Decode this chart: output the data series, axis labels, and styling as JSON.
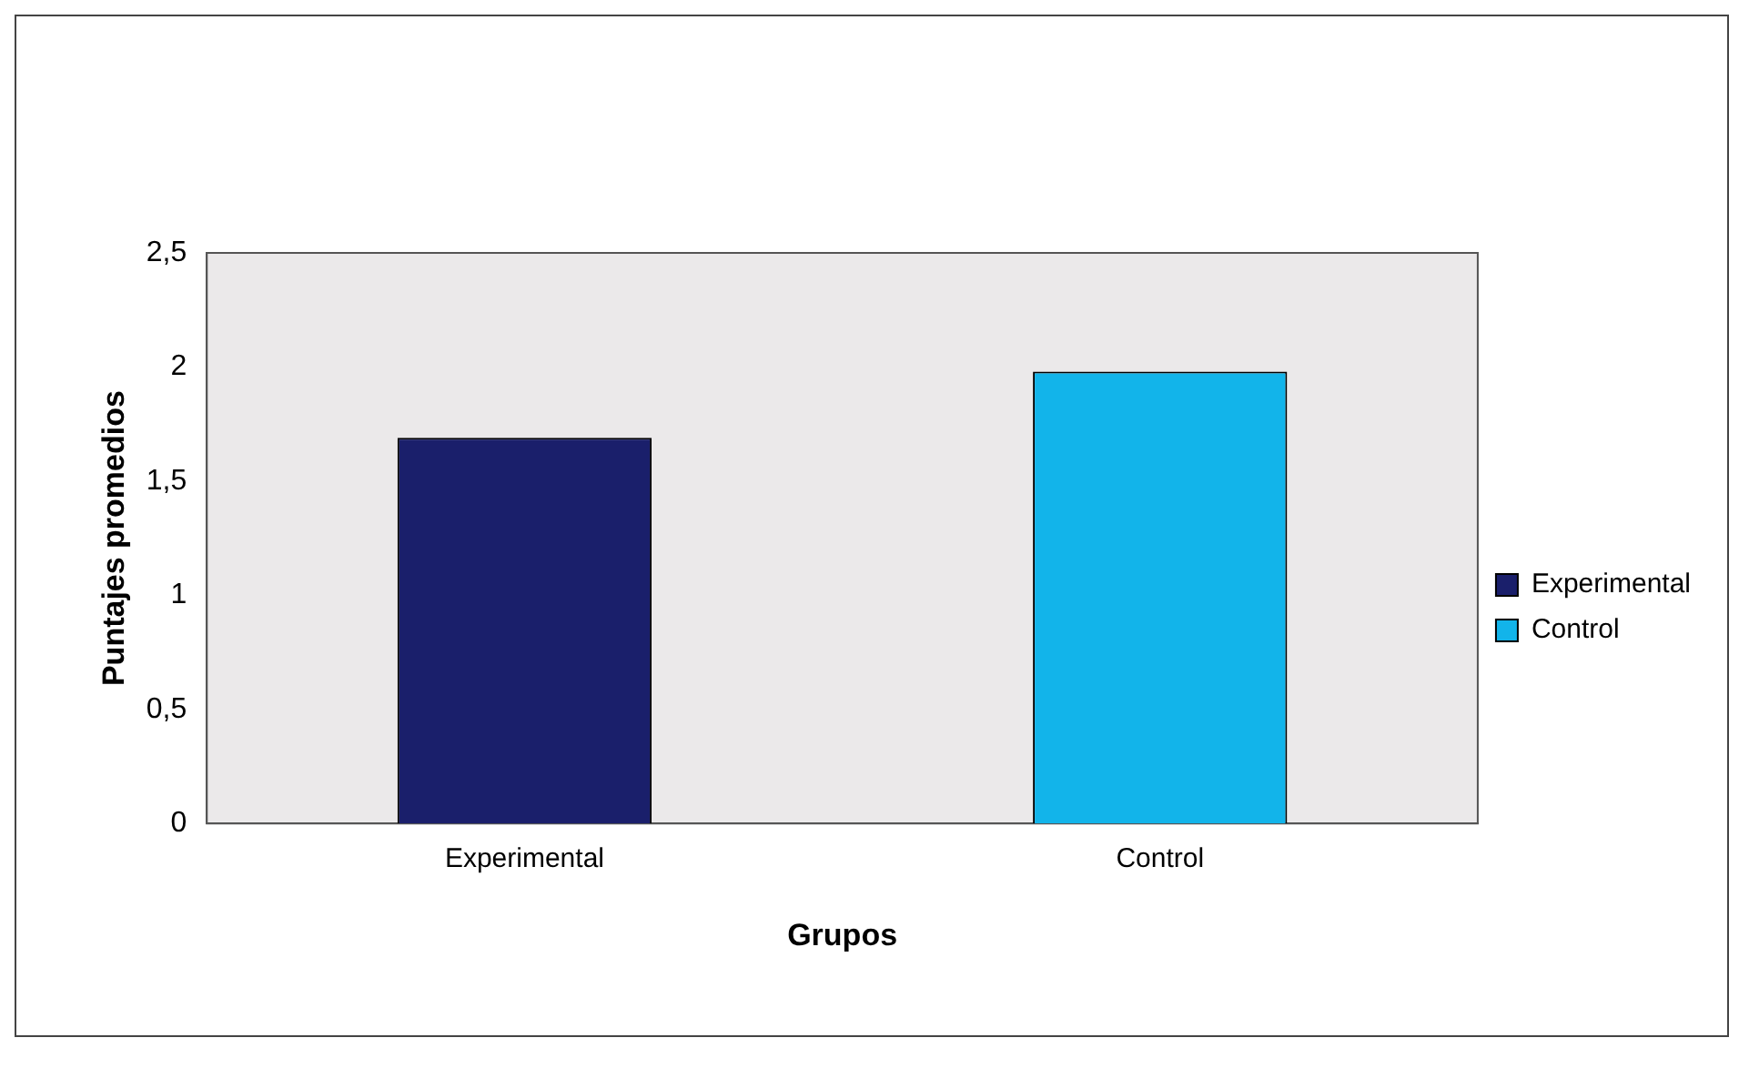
{
  "chart_data": {
    "type": "bar",
    "categories": [
      "Experimental",
      "Control"
    ],
    "xlabel": "Grupos",
    "ylabel": "Puntajes promedios",
    "series": [
      {
        "name": "Experimental",
        "color": "#1a1f6b",
        "values": [
          1.69,
          null
        ]
      },
      {
        "name": "Control",
        "color": "#12b4ea",
        "values": [
          null,
          1.98
        ]
      }
    ],
    "ylim": [
      0,
      2.5
    ],
    "yticks": [
      {
        "value": 0,
        "label": "0"
      },
      {
        "value": 0.5,
        "label": "0,5"
      },
      {
        "value": 1,
        "label": "1"
      },
      {
        "value": 1.5,
        "label": "1,5"
      },
      {
        "value": 2,
        "label": "2"
      },
      {
        "value": 2.5,
        "label": "2,5"
      }
    ],
    "grid": false,
    "legend": "right"
  }
}
